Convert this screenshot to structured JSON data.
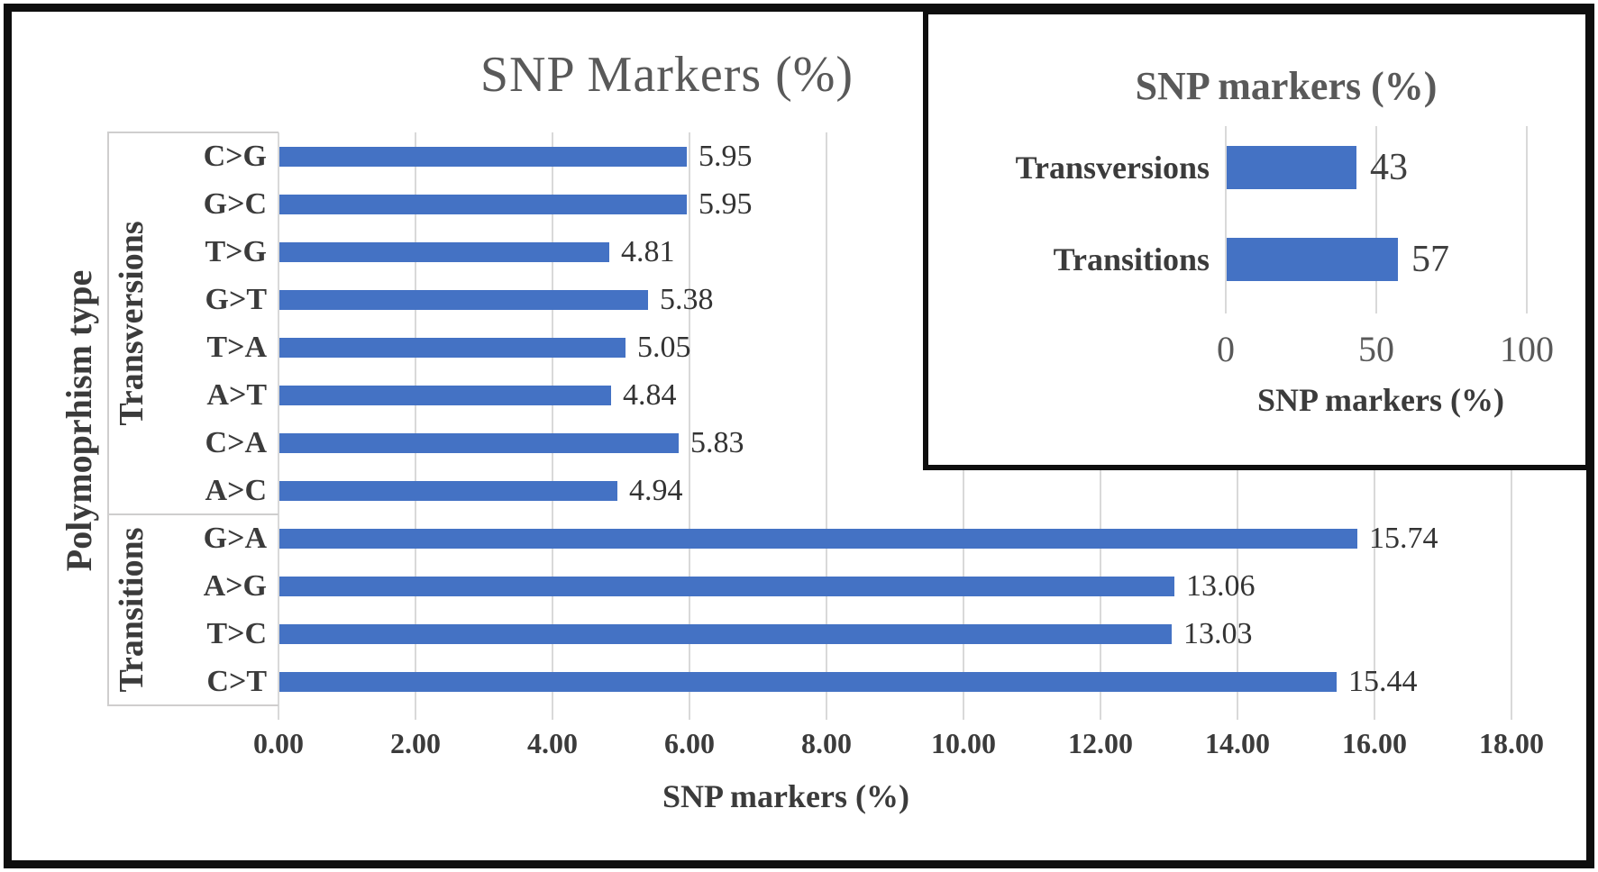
{
  "colors": {
    "bar": "#4472C4",
    "gridline": "#D9D9D9",
    "category_box_line": "#CFCECE",
    "title_text": "#595959",
    "axis_text": "#3b3b3b",
    "frame": "#0e0e0e"
  },
  "chart_data": [
    {
      "id": "main",
      "type": "bar",
      "orientation": "horizontal",
      "title": "SNP Markers (%)",
      "xlabel": "SNP markers (%)",
      "ylabel": "Polymoprhism type",
      "categories": [
        "C>G",
        "G>C",
        "T>G",
        "G>T",
        "T>A",
        "A>T",
        "C>A",
        "A>C",
        "G>A",
        "A>G",
        "T>C",
        "C>T"
      ],
      "values": [
        5.95,
        5.95,
        4.81,
        5.38,
        5.05,
        4.84,
        5.83,
        4.94,
        15.74,
        13.06,
        13.03,
        15.44
      ],
      "data_labels": [
        "5.95",
        "5.95",
        "4.81",
        "5.38",
        "5.05",
        "4.84",
        "5.83",
        "4.94",
        "15.74",
        "13.06",
        "13.03",
        "15.44"
      ],
      "group_labels": [
        {
          "label": "Transversions",
          "row_span": [
            0,
            8
          ]
        },
        {
          "label": "Transitions",
          "row_span": [
            8,
            12
          ]
        }
      ],
      "xlim": [
        0,
        18
      ],
      "xtick_labels": [
        "0.00",
        "2.00",
        "4.00",
        "6.00",
        "8.00",
        "10.00",
        "12.00",
        "14.00",
        "16.00",
        "18.00"
      ],
      "grid": true,
      "legend": "none"
    },
    {
      "id": "inset",
      "type": "bar",
      "orientation": "horizontal",
      "title": "SNP markers (%)",
      "xlabel": "SNP markers (%)",
      "categories": [
        "Transversions",
        "Transitions"
      ],
      "values": [
        43,
        57
      ],
      "data_labels": [
        "43",
        "57"
      ],
      "xlim": [
        0,
        100
      ],
      "xtick_labels": [
        "0",
        "50",
        "100"
      ],
      "grid": true,
      "legend": "none"
    }
  ]
}
